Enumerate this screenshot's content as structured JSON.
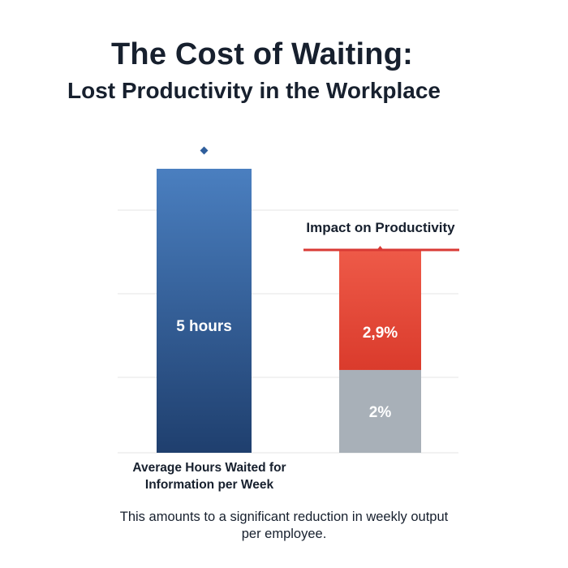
{
  "title": "The Cost of Waiting:",
  "subtitle": "Lost Productivity in the Workplace",
  "footnote": "This amounts to a significant reduction in weekly output per employee.",
  "colors": {
    "blue_top": "#4a7fc0",
    "blue_bottom": "#1f3f6e",
    "red_top": "#ee5a48",
    "red_bottom": "#da3b2c",
    "gray": "#a8b0b8",
    "impact_line": "#d93a35",
    "grid": "#e4e4e4"
  },
  "chart_data": {
    "type": "bar",
    "title": "The Cost of Waiting:",
    "subtitle": "Lost Productivity in the Workplace",
    "grid": true,
    "categories": [
      "Average Hours Waited for Information per Week",
      ""
    ],
    "bars": [
      {
        "category_index": 0,
        "segments": [
          {
            "value": 5,
            "label": "5 hours",
            "color": "#3a6aa8"
          }
        ]
      },
      {
        "category_index": 1,
        "segments": [
          {
            "value": 2,
            "label": "2%",
            "color": "#a8b0b8"
          },
          {
            "value": 2.9,
            "label": "2,9%",
            "color": "#e24a3a"
          }
        ]
      }
    ],
    "annotations": [
      {
        "text": "Impact on Productivity",
        "bar_index": 1
      }
    ]
  }
}
